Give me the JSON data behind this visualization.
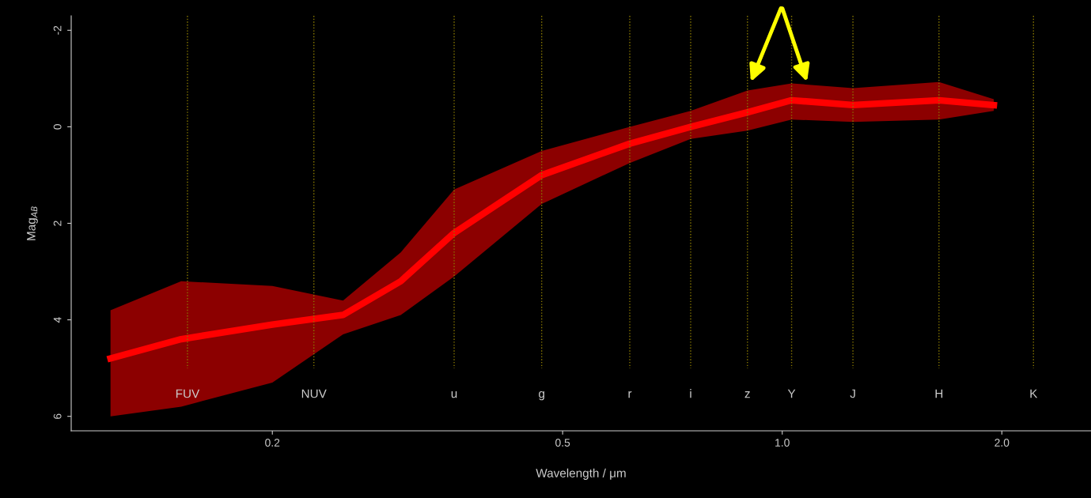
{
  "chart_data": {
    "type": "line",
    "xlabel": "Wavelength / μm",
    "ylabel": "Mag$_{AB}$",
    "log": "x",
    "xlim": [
      0.106,
      2.65
    ],
    "xticks": [
      {
        "value": 0.2,
        "label": "0.2"
      },
      {
        "value": 0.5,
        "label": "0.5"
      },
      {
        "value": 1.0,
        "label": "1.0"
      },
      {
        "value": 2.0,
        "label": "2.0"
      }
    ],
    "ylim": [
      6.3,
      -2.3
    ],
    "yticks": [
      -2,
      0,
      2,
      4,
      6
    ],
    "grid": false,
    "legend": false,
    "marker": "none",
    "line_style": "solid",
    "series": [
      {
        "color": "#ff0000",
        "x": [
          0.12,
          0.15,
          0.2,
          0.25,
          0.3,
          0.355,
          0.468,
          0.618,
          0.749,
          0.896,
          1.03,
          1.25,
          1.64,
          1.95
        ],
        "values": [
          4.8,
          4.4,
          4.1,
          3.9,
          3.2,
          2.2,
          1.0,
          0.35,
          0.0,
          -0.3,
          -0.55,
          -0.45,
          -0.55,
          -0.45
        ],
        "lower": [
          6.0,
          5.8,
          5.3,
          4.3,
          3.9,
          3.1,
          1.6,
          0.75,
          0.25,
          0.08,
          -0.15,
          -0.1,
          -0.15,
          -0.33
        ],
        "upper": [
          3.8,
          3.2,
          3.3,
          3.6,
          2.6,
          1.3,
          0.5,
          0.0,
          -0.33,
          -0.75,
          -0.9,
          -0.8,
          -0.93,
          -0.57
        ]
      }
    ],
    "ref_lines": [
      {
        "axis": "x",
        "value": 0.153,
        "label": "FUV",
        "color": "#8a7a00",
        "line_style": "dotted"
      },
      {
        "axis": "x",
        "value": 0.228,
        "label": "NUV",
        "color": "#8a7a00",
        "line_style": "dotted"
      },
      {
        "axis": "x",
        "value": 0.355,
        "label": "u",
        "color": "#8a7a00",
        "line_style": "dotted"
      },
      {
        "axis": "x",
        "value": 0.468,
        "label": "g",
        "color": "#8a7a00",
        "line_style": "dotted"
      },
      {
        "axis": "x",
        "value": 0.618,
        "label": "r",
        "color": "#8a7a00",
        "line_style": "dotted"
      },
      {
        "axis": "x",
        "value": 0.749,
        "label": "i",
        "color": "#8a7a00",
        "line_style": "dotted"
      },
      {
        "axis": "x",
        "value": 0.896,
        "label": "z",
        "color": "#8a7a00",
        "line_style": "dotted"
      },
      {
        "axis": "x",
        "value": 1.03,
        "label": "Y",
        "color": "#8a7a00",
        "line_style": "dotted"
      },
      {
        "axis": "x",
        "value": 1.25,
        "label": "J",
        "color": "#8a7a00",
        "line_style": "dotted"
      },
      {
        "axis": "x",
        "value": 1.64,
        "label": "H",
        "color": "#8a7a00",
        "line_style": "dotted"
      },
      {
        "axis": "x",
        "value": 2.21,
        "label": "K",
        "color": "#8a7a00",
        "line_style": "dotted"
      }
    ]
  }
}
